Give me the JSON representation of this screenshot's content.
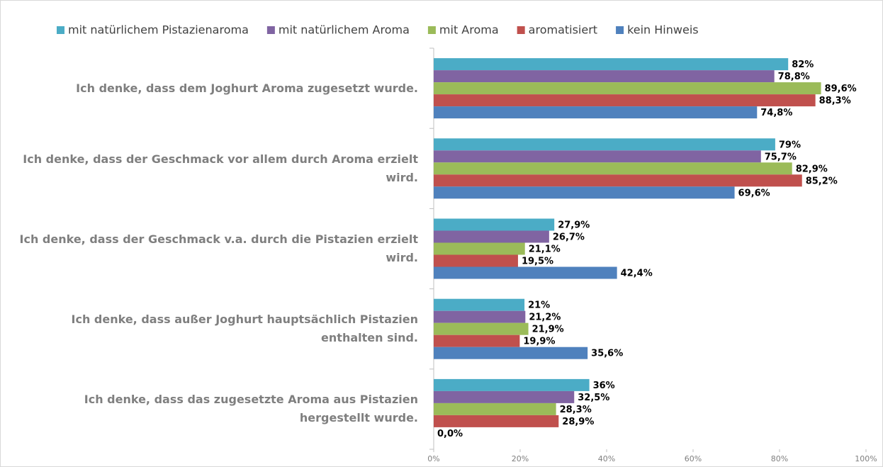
{
  "chart_data": {
    "type": "bar",
    "orientation": "horizontal",
    "categories": [
      "Ich denke, dass dem Joghurt Aroma zugesetzt wurde.",
      "Ich denke, dass der Geschmack vor allem durch Aroma erzielt wird.",
      "Ich denke, dass der Geschmack v.a. durch die Pistazien erzielt wird.",
      "Ich denke, dass außer Joghurt hauptsächlich Pistazien enthalten sind.",
      "Ich denke, dass das zugesetzte Aroma aus Pistazien hergestellt wurde."
    ],
    "series": [
      {
        "name": "mit natürlichem Pistazienaroma",
        "color": "#4bacc6",
        "values": [
          82,
          79,
          27.9,
          21,
          36
        ],
        "value_labels": [
          "82%",
          "79%",
          "27,9%",
          "21%",
          "36%"
        ]
      },
      {
        "name": "mit natürlichem Aroma",
        "color": "#8064a2",
        "values": [
          78.8,
          75.7,
          26.7,
          21.2,
          32.5
        ],
        "value_labels": [
          "78,8%",
          "75,7%",
          "26,7%",
          "21,2%",
          "32,5%"
        ]
      },
      {
        "name": "mit Aroma",
        "color": "#9bbb59",
        "values": [
          89.6,
          82.9,
          21.1,
          21.9,
          28.3
        ],
        "value_labels": [
          "89,6%",
          "82,9%",
          "21,1%",
          "21,9%",
          "28,3%"
        ]
      },
      {
        "name": "aromatisiert",
        "color": "#c0504d",
        "values": [
          88.3,
          85.2,
          19.5,
          19.9,
          28.9
        ],
        "value_labels": [
          "88,3%",
          "85,2%",
          "19,5%",
          "19,9%",
          "28,9%"
        ]
      },
      {
        "name": "kein Hinweis",
        "color": "#4f81bd",
        "values": [
          74.8,
          69.6,
          42.4,
          35.6,
          0
        ],
        "value_labels": [
          "74,8%",
          "69,6%",
          "42,4%",
          "35,6%",
          "0,0%"
        ]
      }
    ],
    "xlim": [
      0,
      100
    ],
    "xticks": [
      {
        "value": 0,
        "label": "0%"
      },
      {
        "value": 20,
        "label": "20%"
      },
      {
        "value": 40,
        "label": "40%"
      },
      {
        "value": 60,
        "label": "60%"
      },
      {
        "value": 80,
        "label": "80%"
      },
      {
        "value": 100,
        "label": "100%"
      }
    ],
    "legend": "top",
    "grid": false
  }
}
